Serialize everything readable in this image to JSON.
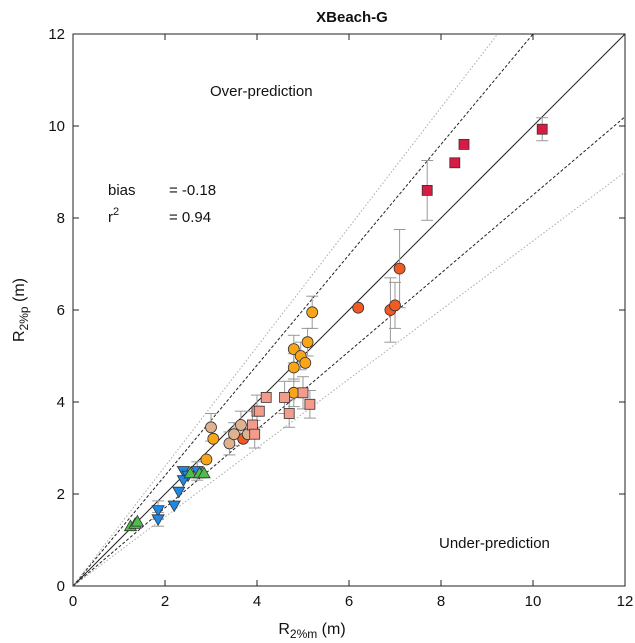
{
  "chart_data": {
    "type": "scatter",
    "title": "XBeach-G",
    "xlabel": {
      "main": "R",
      "sub": "2%m",
      "unit": " (m)"
    },
    "ylabel": {
      "main": "R",
      "sub": "2%p",
      "unit": " (m)"
    },
    "xlim": [
      0,
      12
    ],
    "ylim": [
      0,
      12
    ],
    "xticks": [
      0,
      2,
      4,
      6,
      8,
      10,
      12
    ],
    "yticks": [
      0,
      2,
      4,
      6,
      8,
      10,
      12
    ],
    "grid": false,
    "annotations": {
      "over": "Over-prediction",
      "under": "Under-prediction",
      "bias_label": "bias",
      "bias_value": "= -0.18",
      "r2_label": "r",
      "r2_exp": "2",
      "r2_value": "= 0.94"
    },
    "reference_lines": [
      {
        "slope": 1.0,
        "style": "solid",
        "color": "#222222"
      },
      {
        "slope": 1.2,
        "style": "dashed",
        "color": "#222222"
      },
      {
        "slope": 0.85,
        "style": "dashed",
        "color": "#222222"
      },
      {
        "slope": 1.3,
        "style": "dotted",
        "color": "#aaaaaa"
      },
      {
        "slope": 0.75,
        "style": "dotted",
        "color": "#aaaaaa"
      }
    ],
    "series": [
      {
        "marker": "square",
        "color": "#d81b45",
        "points": [
          {
            "x": 7.7,
            "y": 8.6,
            "err": 0.65
          },
          {
            "x": 8.3,
            "y": 9.2,
            "err": 0
          },
          {
            "x": 8.5,
            "y": 9.6,
            "err": 0
          },
          {
            "x": 10.2,
            "y": 9.93,
            "err": 0.25
          }
        ]
      },
      {
        "marker": "circle",
        "color": "#f15a22",
        "points": [
          {
            "x": 6.2,
            "y": 6.05,
            "err": 0
          },
          {
            "x": 6.9,
            "y": 6.0,
            "err": 0.7
          },
          {
            "x": 7.0,
            "y": 6.1,
            "err": 0.5
          },
          {
            "x": 7.1,
            "y": 6.9,
            "err": 0.85
          },
          {
            "x": 3.7,
            "y": 3.2,
            "err": 0
          }
        ]
      },
      {
        "marker": "circle",
        "color": "#f9a51a",
        "points": [
          {
            "x": 5.2,
            "y": 5.95,
            "err": 0.35
          },
          {
            "x": 5.1,
            "y": 5.3,
            "err": 0.3
          },
          {
            "x": 4.8,
            "y": 5.15,
            "err": 0.3
          },
          {
            "x": 4.95,
            "y": 5.0,
            "err": 0.3
          },
          {
            "x": 5.05,
            "y": 4.85,
            "err": 0
          },
          {
            "x": 4.8,
            "y": 4.75,
            "err": 0.3
          },
          {
            "x": 4.8,
            "y": 4.2,
            "err": 0.3
          },
          {
            "x": 3.05,
            "y": 3.2,
            "err": 0
          },
          {
            "x": 2.9,
            "y": 2.75,
            "err": 0
          },
          {
            "x": 3.9,
            "y": 3.4,
            "err": 0
          }
        ]
      },
      {
        "marker": "circle",
        "color": "#dfb18f",
        "points": [
          {
            "x": 3.0,
            "y": 3.45,
            "err": 0.3
          },
          {
            "x": 3.4,
            "y": 3.1,
            "err": 0.25
          },
          {
            "x": 3.5,
            "y": 3.3,
            "err": 0.25
          },
          {
            "x": 3.65,
            "y": 3.5,
            "err": 0.3
          },
          {
            "x": 3.8,
            "y": 3.3,
            "err": 0
          }
        ]
      },
      {
        "marker": "square",
        "color": "#f49b8b",
        "points": [
          {
            "x": 4.2,
            "y": 4.1,
            "err": 0
          },
          {
            "x": 4.6,
            "y": 4.1,
            "err": 0.35
          },
          {
            "x": 4.7,
            "y": 3.75,
            "err": 0.3
          },
          {
            "x": 5.0,
            "y": 4.2,
            "err": 0.35
          },
          {
            "x": 5.15,
            "y": 3.95,
            "err": 0.3
          },
          {
            "x": 4.0,
            "y": 3.8,
            "err": 0.35
          },
          {
            "x": 3.9,
            "y": 3.5,
            "err": 0.3
          },
          {
            "x": 3.95,
            "y": 3.3,
            "err": 0.3
          },
          {
            "x": 4.05,
            "y": 3.8,
            "err": 0
          }
        ]
      },
      {
        "marker": "triangle-down",
        "color": "#1e88e5",
        "points": [
          {
            "x": 2.4,
            "y": 2.5,
            "err": 0
          },
          {
            "x": 2.5,
            "y": 2.4,
            "err": 0
          },
          {
            "x": 2.7,
            "y": 2.5,
            "err": 0.2
          },
          {
            "x": 2.4,
            "y": 2.3,
            "err": 0
          },
          {
            "x": 2.3,
            "y": 2.05,
            "err": 0
          },
          {
            "x": 2.2,
            "y": 1.75,
            "err": 0
          },
          {
            "x": 1.85,
            "y": 1.65,
            "err": 0.2
          },
          {
            "x": 1.85,
            "y": 1.45,
            "err": 0.15
          }
        ]
      },
      {
        "marker": "triangle-up",
        "color": "#4cbf4a",
        "points": [
          {
            "x": 2.55,
            "y": 2.45,
            "err": 0
          },
          {
            "x": 2.75,
            "y": 2.45,
            "err": 0
          },
          {
            "x": 2.85,
            "y": 2.45,
            "err": 0
          },
          {
            "x": 1.25,
            "y": 1.3,
            "err": 0
          },
          {
            "x": 1.35,
            "y": 1.35,
            "err": 0
          },
          {
            "x": 1.4,
            "y": 1.4,
            "err": 0
          }
        ]
      }
    ]
  }
}
